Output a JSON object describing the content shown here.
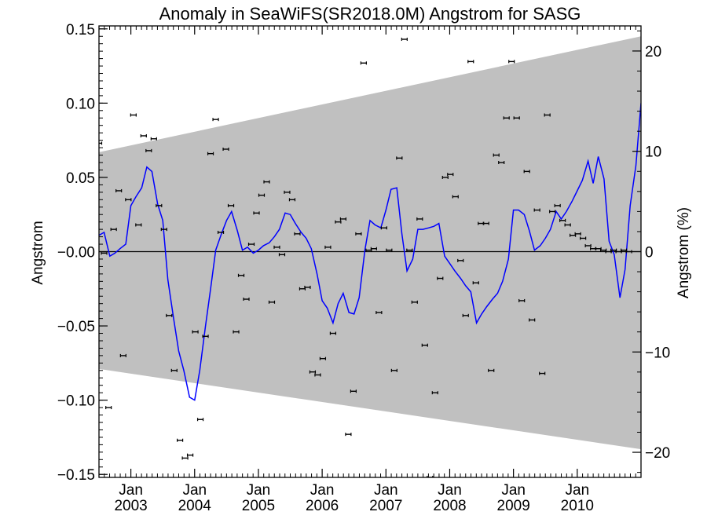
{
  "chart_data": {
    "type": "line",
    "title": "Anomaly in SeaWiFS(SR2018.0M) Angstrom for SASG",
    "xlabel": "",
    "ylabel": "Angstrom",
    "y2label": "Angstrom (%)",
    "xlim": [
      2002.5,
      2011.0
    ],
    "ylim": [
      -0.152,
      0.152
    ],
    "y2lim": [
      -22.5,
      22.5
    ],
    "y_ticks": [
      {
        "value": -0.15,
        "label": "−0.15"
      },
      {
        "value": -0.1,
        "label": "−0.10"
      },
      {
        "value": -0.05,
        "label": "−0.05"
      },
      {
        "value": 0.0,
        "label": "−0.00"
      },
      {
        "value": 0.05,
        "label": "0.05"
      },
      {
        "value": 0.1,
        "label": "0.10"
      },
      {
        "value": 0.15,
        "label": "0.15"
      }
    ],
    "y2_ticks": [
      {
        "value": -20,
        "label": "−20"
      },
      {
        "value": -10,
        "label": "−10"
      },
      {
        "value": 0,
        "label": "0"
      },
      {
        "value": 10,
        "label": "10"
      },
      {
        "value": 20,
        "label": "20"
      }
    ],
    "x_ticks": [
      {
        "value": 2003.0,
        "month": "Jan",
        "year": "2003"
      },
      {
        "value": 2004.0,
        "month": "Jan",
        "year": "2004"
      },
      {
        "value": 2005.0,
        "month": "Jan",
        "year": "2005"
      },
      {
        "value": 2006.0,
        "month": "Jan",
        "year": "2006"
      },
      {
        "value": 2007.0,
        "month": "Jan",
        "year": "2007"
      },
      {
        "value": 2008.0,
        "month": "Jan",
        "year": "2008"
      },
      {
        "value": 2009.0,
        "month": "Jan",
        "year": "2009"
      },
      {
        "value": 2010.0,
        "month": "Jan",
        "year": "2010"
      }
    ],
    "envelope": {
      "color": "#c0c0c0",
      "upper": [
        [
          2002.5,
          0.067
        ],
        [
          2011.0,
          0.145
        ]
      ],
      "lower": [
        [
          2002.5,
          -0.079
        ],
        [
          2011.0,
          -0.133
        ]
      ]
    },
    "zero_line": 0,
    "colors": {
      "smooth": "#0000ff",
      "points": "#000000",
      "envelope": "#c0c0c0",
      "axes": "#000000"
    },
    "series": [
      {
        "kind": "line",
        "x": [
          2002.5,
          2002.58,
          2002.67,
          2002.75,
          2002.83,
          2002.92,
          2003.0,
          2003.08,
          2003.17,
          2003.25,
          2003.33,
          2003.42,
          2003.5,
          2003.58,
          2003.67,
          2003.75,
          2003.83,
          2003.92,
          2004.0,
          2004.08,
          2004.17,
          2004.25,
          2004.33,
          2004.42,
          2004.5,
          2004.58,
          2004.67,
          2004.75,
          2004.83,
          2004.92,
          2005.0,
          2005.08,
          2005.17,
          2005.25,
          2005.33,
          2005.42,
          2005.5,
          2005.58,
          2005.67,
          2005.75,
          2005.83,
          2005.92,
          2006.0,
          2006.08,
          2006.17,
          2006.25,
          2006.33,
          2006.42,
          2006.5,
          2006.58,
          2006.67,
          2006.75,
          2006.83,
          2006.92,
          2007.0,
          2007.08,
          2007.17,
          2007.25,
          2007.33,
          2007.42,
          2007.5,
          2007.58,
          2007.67,
          2007.75,
          2007.83,
          2007.92,
          2008.0,
          2008.08,
          2008.17,
          2008.25,
          2008.33,
          2008.42,
          2008.5,
          2008.58,
          2008.67,
          2008.75,
          2008.83,
          2008.92,
          2009.0,
          2009.08,
          2009.17,
          2009.25,
          2009.33,
          2009.42,
          2009.5,
          2009.58,
          2009.67,
          2009.75,
          2009.83,
          2009.92,
          2010.0,
          2010.08,
          2010.17,
          2010.25,
          2010.33,
          2010.42,
          2010.5,
          2010.58,
          2010.67,
          2010.75,
          2010.83,
          2010.92,
          2011.0
        ],
        "values": [
          0.011,
          0.013,
          -0.003,
          -0.001,
          0.002,
          0.005,
          0.031,
          0.037,
          0.043,
          0.057,
          0.054,
          0.032,
          0.021,
          -0.019,
          -0.045,
          -0.067,
          -0.08,
          -0.098,
          -0.1,
          -0.08,
          -0.05,
          -0.025,
          0.001,
          0.012,
          0.021,
          0.027,
          0.014,
          0.001,
          0.003,
          -0.001,
          0.001,
          0.004,
          0.006,
          0.01,
          0.015,
          0.026,
          0.025,
          0.019,
          0.013,
          0.009,
          0.002,
          -0.015,
          -0.033,
          -0.038,
          -0.048,
          -0.035,
          -0.028,
          -0.041,
          -0.042,
          -0.031,
          0.001,
          0.021,
          0.018,
          0.016,
          0.028,
          0.042,
          0.043,
          0.012,
          -0.013,
          -0.005,
          0.015,
          0.015,
          0.016,
          0.017,
          0.019,
          -0.003,
          -0.008,
          -0.013,
          -0.018,
          -0.023,
          -0.027,
          -0.048,
          -0.042,
          -0.037,
          -0.032,
          -0.028,
          -0.02,
          -0.005,
          0.028,
          0.028,
          0.025,
          0.014,
          0.001,
          0.004,
          0.009,
          0.015,
          0.027,
          0.022,
          0.027,
          0.034,
          0.041,
          0.048,
          0.061,
          0.046,
          0.064,
          0.049,
          0.007,
          -0.002,
          -0.031,
          -0.012,
          0.031,
          0.058,
          0.1
        ]
      },
      {
        "kind": "points",
        "x": [
          2002.5,
          2002.58,
          2002.65,
          2002.73,
          2002.81,
          2002.88,
          2002.96,
          2003.04,
          2003.12,
          2003.2,
          2003.28,
          2003.36,
          2003.44,
          2003.52,
          2003.6,
          2003.68,
          2003.77,
          2003.85,
          2003.93,
          2004.01,
          2004.09,
          2004.17,
          2004.25,
          2004.33,
          2004.41,
          2004.49,
          2004.57,
          2004.65,
          2004.73,
          2004.81,
          2004.89,
          2004.97,
          2005.05,
          2005.13,
          2005.21,
          2005.29,
          2005.37,
          2005.45,
          2005.53,
          2005.61,
          2005.69,
          2005.77,
          2005.85,
          2005.93,
          2006.01,
          2006.09,
          2006.17,
          2006.25,
          2006.33,
          2006.41,
          2006.49,
          2006.57,
          2006.65,
          2006.73,
          2006.81,
          2006.89,
          2006.97,
          2007.05,
          2007.13,
          2007.21,
          2007.29,
          2007.37,
          2007.45,
          2007.53,
          2007.61,
          2007.69,
          2007.77,
          2007.85,
          2007.93,
          2008.01,
          2008.09,
          2008.17,
          2008.25,
          2008.33,
          2008.41,
          2008.49,
          2008.57,
          2008.65,
          2008.73,
          2008.81,
          2008.89,
          2008.97,
          2009.05,
          2009.13,
          2009.21,
          2009.29,
          2009.37,
          2009.45,
          2009.53,
          2009.61,
          2009.69,
          2009.77,
          2009.85,
          2009.93,
          2010.01,
          2010.09,
          2010.17,
          2010.25,
          2010.33,
          2010.41,
          2010.49,
          2010.57,
          2010.65,
          2010.73,
          2010.81
        ],
        "values": [
          0.073,
          -0.001,
          -0.105,
          0.015,
          0.041,
          -0.07,
          0.035,
          0.092,
          0.018,
          0.078,
          0.068,
          0.076,
          0.031,
          0.015,
          -0.043,
          -0.08,
          -0.127,
          -0.139,
          -0.137,
          -0.054,
          -0.113,
          -0.057,
          0.066,
          0.089,
          0.013,
          0.069,
          0.031,
          -0.054,
          -0.016,
          -0.032,
          0.005,
          0.026,
          0.038,
          0.047,
          -0.034,
          0.003,
          -0.002,
          0.04,
          0.035,
          0.012,
          -0.025,
          -0.024,
          -0.081,
          -0.083,
          -0.072,
          0.003,
          -0.055,
          0.02,
          0.022,
          -0.123,
          -0.094,
          0.012,
          0.127,
          0.001,
          0.002,
          -0.041,
          0.016,
          0.001,
          -0.08,
          0.063,
          0.143,
          0.001,
          -0.034,
          0.022,
          -0.063,
          -0.152,
          -0.095,
          -0.018,
          0.05,
          0.052,
          0.037,
          -0.006,
          -0.043,
          0.128,
          -0.021,
          0.019,
          0.019,
          -0.08,
          0.065,
          0.06,
          0.09,
          0.128,
          0.09,
          -0.033,
          0.054,
          -0.046,
          0.028,
          -0.082,
          0.092,
          0.027,
          0.031,
          0.021,
          0.018,
          0.011,
          0.012,
          0.009,
          0.004,
          0.002,
          0.002,
          0.001,
          0.0,
          0.001,
          0.0,
          0.001,
          0.0
        ]
      }
    ]
  }
}
